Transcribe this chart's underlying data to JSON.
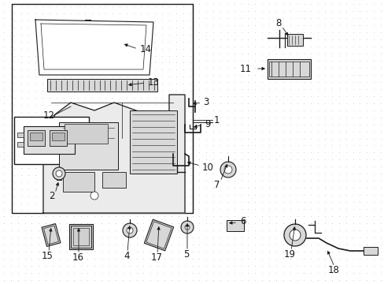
{
  "bg_color": "#ffffff",
  "line_color": "#1a1a1a",
  "dot_color": "#c8c8c8",
  "gray_fill": "#e8e8e8",
  "figsize": [
    4.89,
    3.6
  ],
  "dpi": 100
}
